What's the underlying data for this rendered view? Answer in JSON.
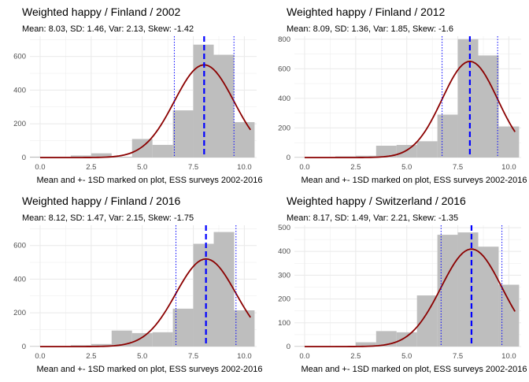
{
  "chart_data": [
    {
      "type": "bar",
      "title": "Weighted  happy / Finland / 2002",
      "subtitle": "Mean: 8.03, SD: 1.46, Var: 2.13, Skew: -1.42",
      "xlabel": "Mean and +- 1SD marked on plot, ESS surveys 2002-2016",
      "xlim": [
        -0.5,
        10.6
      ],
      "ylim": [
        0,
        720
      ],
      "xticks": [
        "0.0",
        "2.5",
        "5.0",
        "7.5",
        "10.0"
      ],
      "yticks": [
        "0",
        "200",
        "400",
        "600"
      ],
      "bins": [
        [
          -0.5,
          1.5,
          5
        ],
        [
          1.5,
          2.5,
          12
        ],
        [
          2.5,
          3.5,
          25
        ],
        [
          3.5,
          4.5,
          5
        ],
        [
          4.5,
          5.5,
          110
        ],
        [
          5.5,
          6.5,
          75
        ],
        [
          6.5,
          7.5,
          280
        ],
        [
          7.5,
          8.5,
          670
        ],
        [
          8.5,
          9.5,
          610
        ],
        [
          9.5,
          10.5,
          210
        ]
      ],
      "mean": 8.03,
      "sd": 1.46,
      "curve_peak": 550
    },
    {
      "type": "bar",
      "title": "Weighted  happy / Finland / 2012",
      "subtitle": "Mean: 8.09, SD: 1.36, Var: 1.85, Skew: -1.6",
      "xlabel": "Mean and +- 1SD marked on plot, ESS surveys 2002-2016",
      "xlim": [
        -0.5,
        10.6
      ],
      "ylim": [
        0,
        820
      ],
      "xticks": [
        "0.0",
        "2.5",
        "5.0",
        "7.5",
        "10.0"
      ],
      "yticks": [
        "0",
        "200",
        "400",
        "600",
        "800"
      ],
      "bins": [
        [
          -0.5,
          1.5,
          3
        ],
        [
          1.5,
          2.5,
          8
        ],
        [
          2.5,
          3.5,
          12
        ],
        [
          3.5,
          4.5,
          80
        ],
        [
          4.5,
          5.5,
          85
        ],
        [
          5.5,
          6.5,
          110
        ],
        [
          6.5,
          7.5,
          290
        ],
        [
          7.5,
          8.5,
          800
        ],
        [
          8.5,
          9.5,
          690
        ],
        [
          9.5,
          10.5,
          210
        ]
      ],
      "mean": 8.09,
      "sd": 1.36,
      "curve_peak": 650
    },
    {
      "type": "bar",
      "title": "Weighted  happy / Finland / 2016",
      "subtitle": "Mean: 8.12, SD: 1.47, Var: 2.15, Skew: -1.75",
      "xlabel": "Mean and +- 1SD marked on plot, ESS surveys 2002-2016",
      "xlim": [
        -0.5,
        10.6
      ],
      "ylim": [
        0,
        720
      ],
      "xticks": [
        "0.0",
        "2.5",
        "5.0",
        "7.5",
        "10.0"
      ],
      "yticks": [
        "0",
        "200",
        "400",
        "600"
      ],
      "bins": [
        [
          -0.5,
          1.5,
          3
        ],
        [
          1.5,
          2.5,
          8
        ],
        [
          2.5,
          3.5,
          15
        ],
        [
          3.5,
          4.5,
          95
        ],
        [
          4.5,
          5.5,
          80
        ],
        [
          5.5,
          6.5,
          85
        ],
        [
          6.5,
          7.5,
          225
        ],
        [
          7.5,
          8.5,
          610
        ],
        [
          8.5,
          9.5,
          680
        ],
        [
          9.5,
          10.5,
          215
        ]
      ],
      "mean": 8.12,
      "sd": 1.47,
      "curve_peak": 520
    },
    {
      "type": "bar",
      "title": "Weighted  happy / Switzerland / 2016",
      "subtitle": "Mean: 8.17, SD: 1.49, Var: 2.21, Skew: -1.35",
      "xlabel": "Mean and +- 1SD marked on plot, ESS surveys 2002-2016",
      "xlim": [
        -0.5,
        10.6
      ],
      "ylim": [
        0,
        510
      ],
      "xticks": [
        "0.0",
        "2.5",
        "5.0",
        "7.5",
        "10.0"
      ],
      "yticks": [
        "0",
        "100",
        "200",
        "300",
        "400",
        "500"
      ],
      "bins": [
        [
          -0.5,
          1.5,
          2
        ],
        [
          1.5,
          2.5,
          3
        ],
        [
          2.5,
          3.5,
          18
        ],
        [
          3.5,
          4.5,
          65
        ],
        [
          4.5,
          5.5,
          60
        ],
        [
          5.5,
          6.5,
          215
        ],
        [
          6.5,
          7.5,
          470
        ],
        [
          7.5,
          8.5,
          480
        ],
        [
          8.5,
          9.5,
          420
        ],
        [
          9.5,
          10.5,
          260
        ]
      ],
      "mean": 8.17,
      "sd": 1.49,
      "curve_peak": 410
    }
  ],
  "colors": {
    "bar": "#bebebe",
    "curve": "#8b0000",
    "mean_line": "#0000ff",
    "grid": "#ebebeb",
    "text": "#000000",
    "tick_text": "#4d4d4d"
  }
}
